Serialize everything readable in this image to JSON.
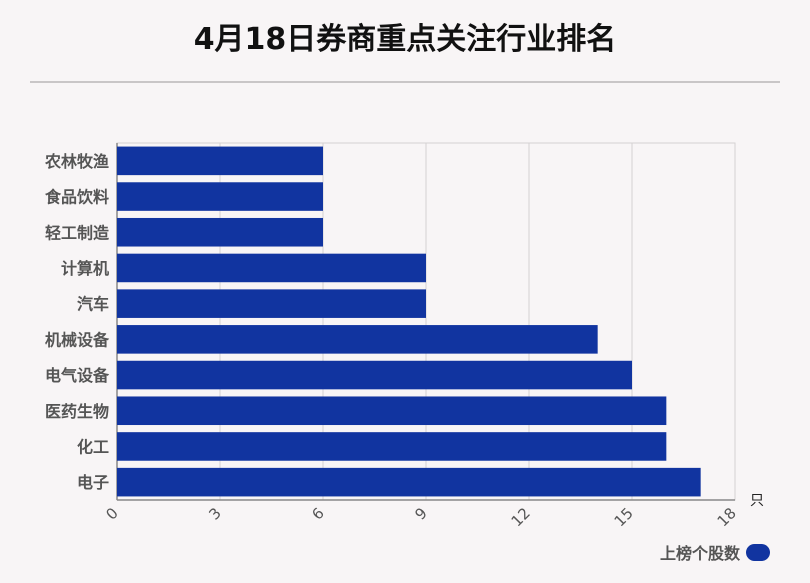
{
  "title": "4月18日券商重点关注行业排名",
  "chart_data": {
    "type": "bar",
    "orientation": "horizontal",
    "categories": [
      "农林牧渔",
      "食品饮料",
      "轻工制造",
      "计算机",
      "汽车",
      "机械设备",
      "电气设备",
      "医药生物",
      "化工",
      "电子"
    ],
    "series": [
      {
        "name": "上榜个股数",
        "values": [
          6,
          6,
          6,
          9,
          9,
          14,
          15,
          16,
          16,
          17
        ]
      }
    ],
    "xlim": [
      0,
      18
    ],
    "xticks": [
      "0",
      "3",
      "6",
      "9",
      "12",
      "15",
      "18"
    ],
    "unit": "只",
    "grid": true,
    "legend_position": "bottom-right",
    "colors": {
      "bar": "#1134a0",
      "grid": "#d4d1d2",
      "axis": "#888888"
    }
  }
}
